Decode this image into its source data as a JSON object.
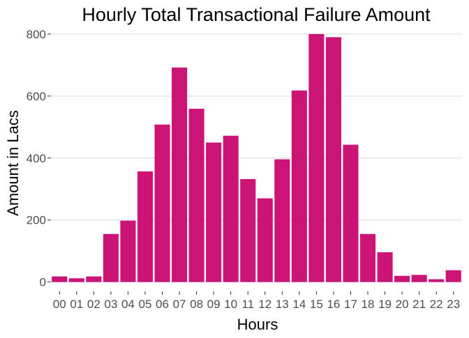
{
  "chart_data": {
    "type": "bar",
    "title": "Hourly Total Transactional Failure Amount",
    "xlabel": "Hours",
    "ylabel": "Amount in Lacs",
    "categories": [
      "00",
      "01",
      "02",
      "03",
      "04",
      "05",
      "06",
      "07",
      "08",
      "09",
      "10",
      "11",
      "12",
      "13",
      "14",
      "15",
      "16",
      "17",
      "18",
      "19",
      "20",
      "21",
      "22",
      "23"
    ],
    "values": [
      18,
      12,
      18,
      155,
      198,
      357,
      508,
      692,
      559,
      450,
      472,
      332,
      270,
      396,
      618,
      800,
      790,
      443,
      155,
      96,
      20,
      23,
      9,
      38
    ],
    "ylim": [
      -30,
      820
    ],
    "yticks": [
      0,
      200,
      400,
      600,
      800
    ],
    "grid": true,
    "legend": "none",
    "bar_color": "#cc1477"
  }
}
